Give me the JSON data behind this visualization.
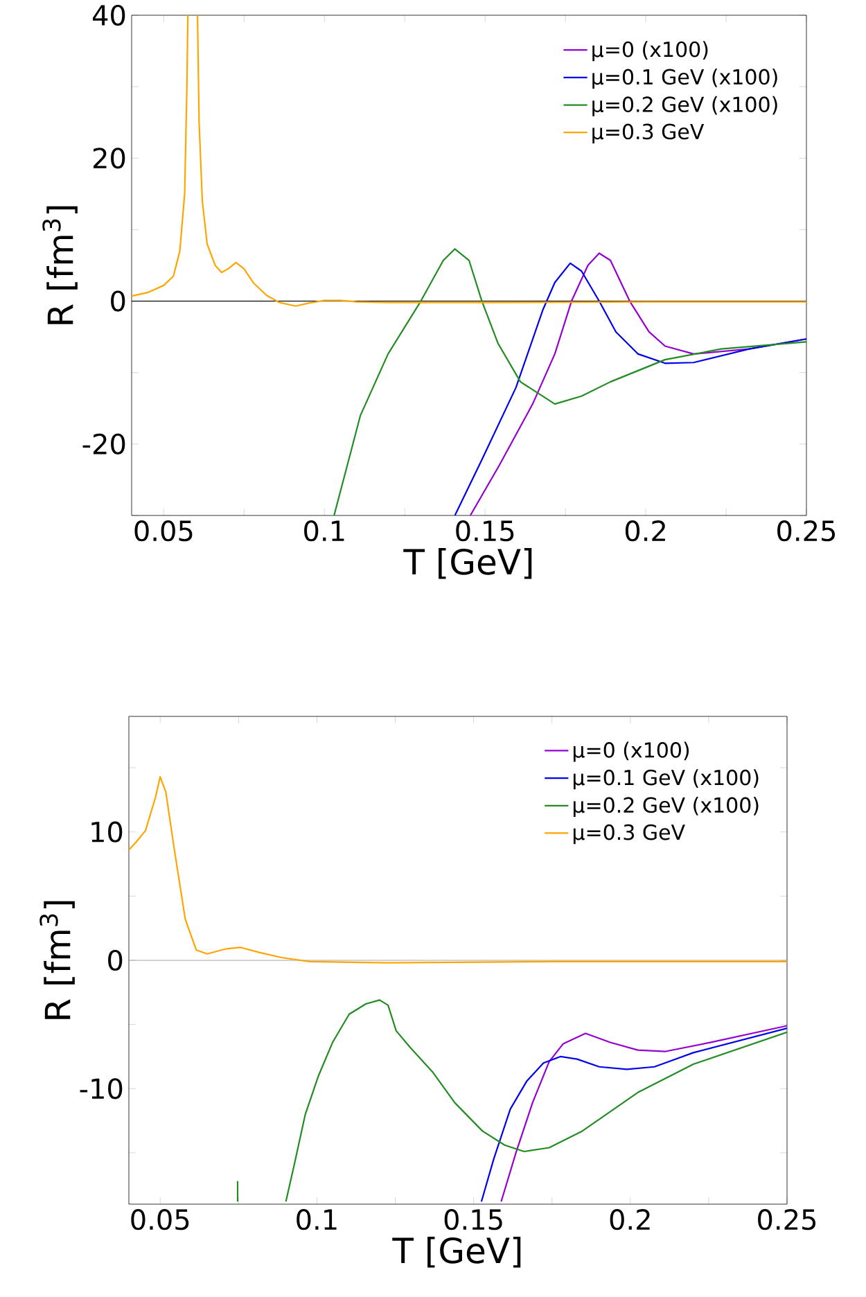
{
  "chart_data": [
    {
      "type": "line",
      "xlabel": "T [GeV]",
      "ylabel": "R [fm$^{3}$]",
      "xlim": [
        0.04,
        0.25
      ],
      "ylim": [
        -30,
        40
      ],
      "xticks": [
        0.05,
        {
          "value": 0.075,
          "label": null
        },
        0.1,
        {
          "value": 0.125,
          "label": null
        },
        0.15,
        {
          "value": 0.175,
          "label": null
        },
        0.2,
        {
          "value": 0.225,
          "label": null
        },
        0.25
      ],
      "yticks": [
        {
          "value": -30,
          "label": null
        },
        -20,
        {
          "value": -10,
          "label": null
        },
        0,
        {
          "value": 10,
          "label": null
        },
        20,
        {
          "value": 30,
          "label": null
        },
        40
      ],
      "legend": "top right",
      "line_style": "solid",
      "marker": "none",
      "ref_lines": [
        {
          "axis": "y",
          "value": 0,
          "color": "#000000"
        }
      ],
      "series": [
        {
          "name": "μ=0 (x100)",
          "color": "#9400d3",
          "x": [
            0.1454,
            0.1544,
            0.1648,
            0.1717,
            0.1769,
            0.182,
            0.1855,
            0.189,
            0.195,
            0.201,
            0.206,
            0.2149,
            0.2322,
            0.25
          ],
          "values": [
            -30,
            -23,
            -14.4,
            -7.4,
            0,
            5,
            6.7,
            5.7,
            0,
            -4.3,
            -6.3,
            -7.4,
            -6.7,
            -5.3
          ]
        },
        {
          "name": "μ=0.1 GeV (x100)",
          "color": "#0000ee",
          "x": [
            0.1406,
            0.149,
            0.1596,
            0.168,
            0.1717,
            0.1765,
            0.18,
            0.1855,
            0.1907,
            0.1976,
            0.206,
            0.2149,
            0.2322,
            0.25
          ],
          "values": [
            -30,
            -22.2,
            -12.1,
            -1.2,
            2.6,
            5.3,
            4.2,
            0,
            -4.3,
            -7.4,
            -8.7,
            -8.6,
            -6.7,
            -5.3
          ]
        },
        {
          "name": "μ=0.2 GeV (x100)",
          "color": "#228b22",
          "x": [
            0.103,
            0.1112,
            0.1198,
            0.13,
            0.137,
            0.1406,
            0.145,
            0.149,
            0.154,
            0.161,
            0.1717,
            0.18,
            0.189,
            0.206,
            0.2235,
            0.25
          ],
          "values": [
            -30,
            -16,
            -7.4,
            0,
            5.7,
            7.3,
            5.7,
            0,
            -5.9,
            -11.3,
            -14.4,
            -13.3,
            -11.3,
            -8.2,
            -6.7,
            -5.7
          ]
        },
        {
          "name": "μ=0.3 GeV",
          "color": "#ffa500",
          "x": [
            0.04,
            0.045,
            0.05,
            0.053,
            0.055,
            0.0565,
            0.0572,
            0.0575,
            0.059,
            0.0605,
            0.061,
            0.062,
            0.0635,
            0.066,
            0.068,
            0.07,
            0.0725,
            0.075,
            0.078,
            0.082,
            0.086,
            0.091,
            0.095,
            0.1,
            0.105,
            0.11,
            0.12,
            0.15,
            0.2,
            0.25
          ],
          "values": [
            0.7,
            1.2,
            2.2,
            3.5,
            7,
            15,
            30,
            40,
            null,
            40,
            25,
            14,
            8,
            5,
            4,
            4.5,
            5.4,
            4.5,
            2.5,
            0.8,
            -0.2,
            -0.7,
            -0.3,
            0.1,
            0.1,
            -0.1,
            -0.2,
            -0.2,
            -0.1,
            -0.1
          ]
        }
      ]
    },
    {
      "type": "line",
      "xlabel": "T [GeV]",
      "ylabel": "R [fm$^{3}$]",
      "xlim": [
        0.04,
        0.25
      ],
      "ylim": [
        -19,
        19
      ],
      "xticks": [
        0.05,
        {
          "value": 0.075,
          "label": null
        },
        0.1,
        {
          "value": 0.125,
          "label": null
        },
        0.15,
        {
          "value": 0.175,
          "label": null
        },
        0.2,
        {
          "value": 0.225,
          "label": null
        },
        0.25
      ],
      "yticks": [
        {
          "value": -15,
          "label": null
        },
        -10,
        {
          "value": -5,
          "label": null
        },
        0,
        {
          "value": 5,
          "label": null
        },
        10,
        {
          "value": 15,
          "label": null
        }
      ],
      "legend": "top right",
      "line_style": "solid",
      "marker": "none",
      "ref_lines": [
        {
          "axis": "y",
          "value": 0,
          "color": "#999999"
        }
      ],
      "series": [
        {
          "name": "μ=0 (x100)",
          "color": "#9400d3",
          "x": [
            0.1588,
            0.1635,
            0.1688,
            0.1741,
            0.1786,
            0.1857,
            0.1936,
            0.2024,
            0.2113,
            0.2255,
            0.25
          ],
          "values": [
            -18.8,
            -15,
            -11.1,
            -7.9,
            -6.5,
            -5.7,
            -6.4,
            -7.0,
            -7.1,
            -6.4,
            -5.1
          ]
        },
        {
          "name": "μ=0.1 GeV (x100)",
          "color": "#0000ee",
          "x": [
            0.1525,
            0.1564,
            0.1617,
            0.167,
            0.1723,
            0.1777,
            0.183,
            0.1901,
            0.1989,
            0.2077,
            0.2201,
            0.25
          ],
          "values": [
            -18.8,
            -15.5,
            -11.6,
            -9.4,
            -8.0,
            -7.5,
            -7.7,
            -8.3,
            -8.5,
            -8.3,
            -7.2,
            -5.3
          ]
        },
        {
          "name": "μ=0.2 GeV (x100)",
          "color": "#228b22",
          "x": [
            0.0747,
            0.0747,
            0.08,
            0.0901,
            0.0928,
            0.0963,
            0.1005,
            0.105,
            0.1103,
            0.1156,
            0.12,
            0.1227,
            0.1253,
            0.1298,
            0.1369,
            0.144,
            0.1528,
            0.1599,
            0.1661,
            0.1741,
            0.1847,
            0.2024,
            0.2201,
            0.25
          ],
          "values": [
            -18.8,
            -17.2,
            null,
            -18.8,
            -15.9,
            -12,
            -9.0,
            -6.4,
            -4.2,
            -3.4,
            -3.1,
            -3.5,
            -5.5,
            -6.8,
            -8.7,
            -11.1,
            -13.3,
            -14.4,
            -14.9,
            -14.6,
            -13.3,
            -10.3,
            -8.1,
            -5.6
          ]
        },
        {
          "name": "μ=0.3 GeV",
          "color": "#ffa500",
          "x": [
            0.04,
            0.0423,
            0.0453,
            0.0485,
            0.05,
            0.0518,
            0.0544,
            0.058,
            0.0615,
            0.065,
            0.0712,
            0.0757,
            0.0818,
            0.0889,
            0.0977,
            0.1225,
            0.176,
            0.25
          ],
          "values": [
            8.6,
            9.2,
            10.1,
            12.7,
            14.3,
            13.1,
            8.8,
            3.2,
            0.8,
            0.5,
            0.9,
            1.0,
            0.6,
            0.2,
            -0.1,
            -0.2,
            -0.1,
            -0.1
          ]
        }
      ]
    }
  ]
}
